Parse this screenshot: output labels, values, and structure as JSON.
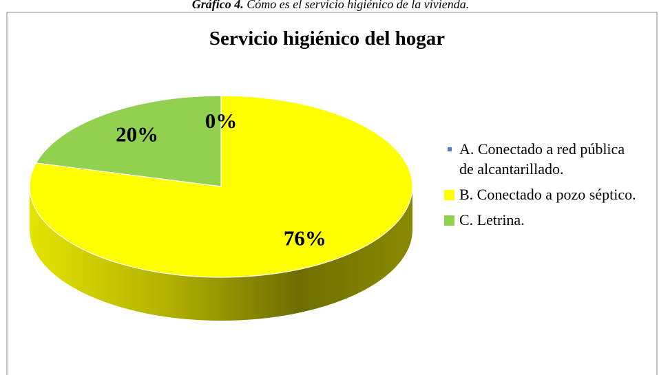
{
  "caption": {
    "label": "Gráfico 4.",
    "text": "Cómo es el servicio higiénico de la vivienda."
  },
  "chart_data": {
    "type": "pie",
    "title": "Servicio higiénico del hogar",
    "categories": [
      "A. Conectado a red pública de alcantarillado.",
      "B. Conectado a pozo séptico.",
      "C. Letrina."
    ],
    "values": [
      0,
      76,
      20
    ],
    "value_labels": [
      "0%",
      "76%",
      "20%"
    ],
    "colors": [
      "#4f81bd",
      "#ffff00",
      "#92d050"
    ],
    "legend": "right"
  }
}
